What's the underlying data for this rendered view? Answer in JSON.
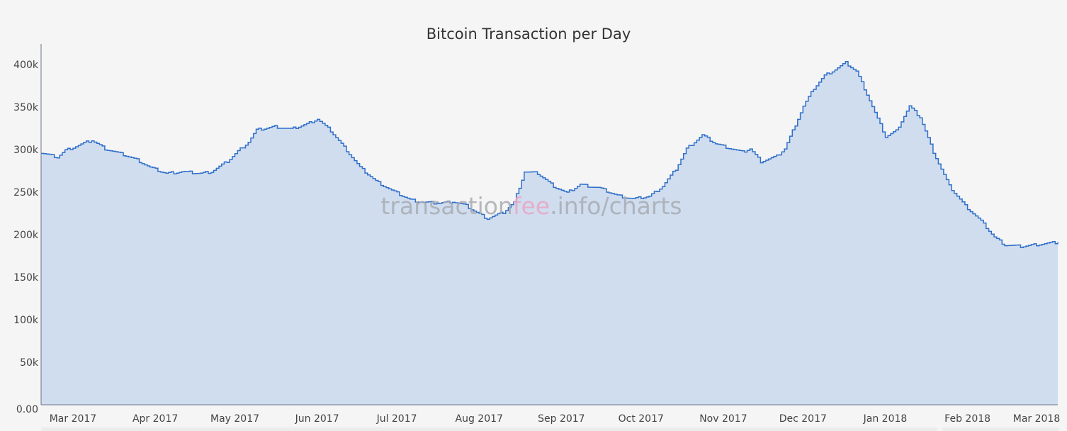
{
  "chart_data": {
    "type": "area",
    "title": "Bitcoin Transaction per Day",
    "xlabel": "",
    "ylabel": "",
    "ylim": [
      0,
      420000
    ],
    "xlim": [
      "2017-02-17",
      "2018-03-07"
    ],
    "y_ticks": [
      {
        "value": 0,
        "label": "0.00"
      },
      {
        "value": 50000,
        "label": "50k"
      },
      {
        "value": 100000,
        "label": "100k"
      },
      {
        "value": 150000,
        "label": "150k"
      },
      {
        "value": 200000,
        "label": "200k"
      },
      {
        "value": 250000,
        "label": "250k"
      },
      {
        "value": 300000,
        "label": "300k"
      },
      {
        "value": 350000,
        "label": "350k"
      },
      {
        "value": 400000,
        "label": "400k"
      }
    ],
    "x_ticks": [
      {
        "date": "2017-03-01",
        "label": "Mar 2017"
      },
      {
        "date": "2017-04-01",
        "label": "Apr 2017"
      },
      {
        "date": "2017-05-01",
        "label": "May 2017"
      },
      {
        "date": "2017-06-01",
        "label": "Jun 2017"
      },
      {
        "date": "2017-07-01",
        "label": "Jul 2017"
      },
      {
        "date": "2017-08-01",
        "label": "Aug 2017"
      },
      {
        "date": "2017-09-01",
        "label": "Sep 2017"
      },
      {
        "date": "2017-10-01",
        "label": "Oct 2017"
      },
      {
        "date": "2017-11-01",
        "label": "Nov 2017"
      },
      {
        "date": "2017-12-01",
        "label": "Dec 2017"
      },
      {
        "date": "2018-01-01",
        "label": "Jan 2018"
      },
      {
        "date": "2018-02-01",
        "label": "Feb 2018"
      },
      {
        "date": "2018-03-01",
        "label": "Mar 2018"
      }
    ],
    "grid": false,
    "line_style": "step",
    "colors": {
      "line": "#2f6fc9",
      "fill": "#d0ddef"
    },
    "series": [
      {
        "points": [
          [
            "2017-02-17",
            296000
          ],
          [
            "2017-02-23",
            291000
          ],
          [
            "2017-02-26",
            299000
          ],
          [
            "2017-03-03",
            305000
          ],
          [
            "2017-03-08",
            311000
          ],
          [
            "2017-03-13",
            301000
          ],
          [
            "2017-03-20",
            294000
          ],
          [
            "2017-03-25",
            288000
          ],
          [
            "2017-03-30",
            279000
          ],
          [
            "2017-04-05",
            272000
          ],
          [
            "2017-04-11",
            274000
          ],
          [
            "2017-04-18",
            272000
          ],
          [
            "2017-04-22",
            274000
          ],
          [
            "2017-04-28",
            286000
          ],
          [
            "2017-05-02",
            298000
          ],
          [
            "2017-05-06",
            309000
          ],
          [
            "2017-05-09",
            323000
          ],
          [
            "2017-05-16",
            327000
          ],
          [
            "2017-05-22",
            324000
          ],
          [
            "2017-05-28",
            330000
          ],
          [
            "2017-06-01",
            336000
          ],
          [
            "2017-06-06",
            322000
          ],
          [
            "2017-06-12",
            299000
          ],
          [
            "2017-06-17",
            279000
          ],
          [
            "2017-06-23",
            263000
          ],
          [
            "2017-06-29",
            252000
          ],
          [
            "2017-07-06",
            241000
          ],
          [
            "2017-07-11",
            238000
          ],
          [
            "2017-07-17",
            237000
          ],
          [
            "2017-07-22",
            239000
          ],
          [
            "2017-07-27",
            234000
          ],
          [
            "2017-07-31",
            226000
          ],
          [
            "2017-08-04",
            219000
          ],
          [
            "2017-08-10",
            226000
          ],
          [
            "2017-08-14",
            238000
          ],
          [
            "2017-08-18",
            274000
          ],
          [
            "2017-08-23",
            272000
          ],
          [
            "2017-08-29",
            257000
          ],
          [
            "2017-09-03",
            249000
          ],
          [
            "2017-09-08",
            259000
          ],
          [
            "2017-09-15",
            255000
          ],
          [
            "2017-09-22",
            246000
          ],
          [
            "2017-09-28",
            242000
          ],
          [
            "2017-10-04",
            245000
          ],
          [
            "2017-10-09",
            257000
          ],
          [
            "2017-10-14",
            277000
          ],
          [
            "2017-10-18",
            301000
          ],
          [
            "2017-10-24",
            317000
          ],
          [
            "2017-10-29",
            307000
          ],
          [
            "2017-11-04",
            301000
          ],
          [
            "2017-11-08",
            297000
          ],
          [
            "2017-11-11",
            301000
          ],
          [
            "2017-11-15",
            286000
          ],
          [
            "2017-11-21",
            292000
          ],
          [
            "2017-11-24",
            301000
          ],
          [
            "2017-11-27",
            322000
          ],
          [
            "2017-12-01",
            351000
          ],
          [
            "2017-12-05",
            372000
          ],
          [
            "2017-12-09",
            387000
          ],
          [
            "2017-12-13",
            394000
          ],
          [
            "2017-12-17",
            402000
          ],
          [
            "2017-12-21",
            392000
          ],
          [
            "2017-12-25",
            365000
          ],
          [
            "2017-12-29",
            336000
          ],
          [
            "2018-01-01",
            315000
          ],
          [
            "2018-01-05",
            322000
          ],
          [
            "2018-01-10",
            351000
          ],
          [
            "2018-01-14",
            338000
          ],
          [
            "2018-01-19",
            297000
          ],
          [
            "2018-01-25",
            257000
          ],
          [
            "2018-01-31",
            234000
          ],
          [
            "2018-02-06",
            216000
          ],
          [
            "2018-02-11",
            197000
          ],
          [
            "2018-02-15",
            188000
          ],
          [
            "2018-02-21",
            186000
          ],
          [
            "2018-02-26",
            188000
          ],
          [
            "2018-03-07",
            191000
          ]
        ]
      }
    ]
  },
  "watermark": {
    "part1": "transaction",
    "part2": "fee",
    "part3": ".info/charts",
    "accent_color": "#e9a6c4"
  }
}
